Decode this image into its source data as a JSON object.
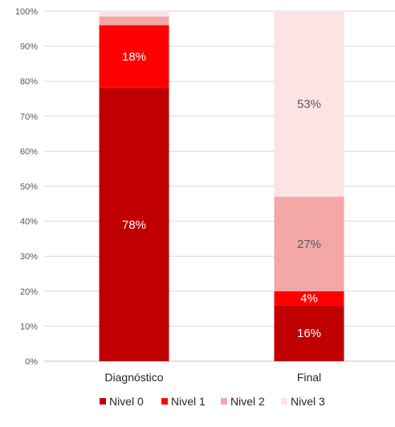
{
  "chart_data": {
    "type": "bar",
    "stacked": true,
    "percent": true,
    "categories": [
      "Diagnóstico",
      "Final"
    ],
    "series": [
      {
        "name": "Nivel 0",
        "color": "#C00000",
        "values": [
          78,
          16
        ],
        "labels": [
          "78%",
          "16%"
        ],
        "label_color": "#ffffff"
      },
      {
        "name": "Nivel 1",
        "color": "#FF0000",
        "values": [
          18,
          4
        ],
        "labels": [
          "18%",
          "4%"
        ],
        "label_color": "#ffffff"
      },
      {
        "name": "Nivel 2",
        "color": "#F4A7A7",
        "values": [
          2.5,
          27
        ],
        "labels": [
          "",
          "27%"
        ],
        "label_color": "#595959"
      },
      {
        "name": "Nivel 3",
        "color": "#FCE4E4",
        "values": [
          1.5,
          53
        ],
        "labels": [
          "",
          "53%"
        ],
        "label_color": "#595959"
      }
    ],
    "ylim": [
      0,
      100
    ],
    "yticks": [
      "0%",
      "10%",
      "20%",
      "30%",
      "40%",
      "50%",
      "60%",
      "70%",
      "80%",
      "90%",
      "100%"
    ],
    "grid": true,
    "legend": "bottom",
    "title": "",
    "xlabel": "",
    "ylabel": ""
  }
}
